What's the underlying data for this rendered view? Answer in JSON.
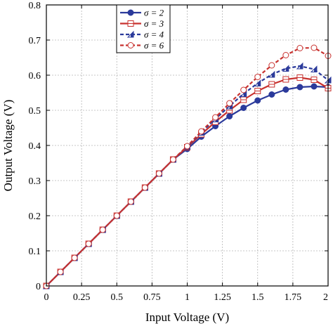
{
  "chart_data": {
    "type": "line",
    "title": "",
    "xlabel": "Input Voltage (V)",
    "ylabel": "Output Voltage (V)",
    "xlim": [
      0,
      2
    ],
    "ylim": [
      0,
      0.8
    ],
    "xticks": [
      0,
      0.25,
      0.5,
      0.75,
      1,
      1.25,
      1.5,
      1.75,
      2
    ],
    "xtick_labels": [
      "0",
      "0.25",
      "0.5",
      "0.75",
      "1",
      "1.25",
      "1.5",
      "1.75",
      "2"
    ],
    "yticks": [
      0,
      0.1,
      0.2,
      0.3,
      0.4,
      0.5,
      0.6,
      0.7,
      0.8
    ],
    "ytick_labels": [
      "0",
      "0.1",
      "0.2",
      "0.3",
      "0.4",
      "0.5",
      "0.6",
      "0.7",
      "0.8"
    ],
    "grid": true,
    "legend_position": "top-left",
    "x": [
      0,
      0.1,
      0.2,
      0.3,
      0.4,
      0.5,
      0.6,
      0.7,
      0.8,
      0.9,
      1.0,
      1.1,
      1.2,
      1.3,
      1.4,
      1.5,
      1.6,
      1.7,
      1.8,
      1.9,
      2.0
    ],
    "series": [
      {
        "name": "σ = 2",
        "color": "#2b3a9b",
        "dash": "solid",
        "marker": "filled-circle",
        "values": [
          0,
          0.04,
          0.08,
          0.12,
          0.16,
          0.2,
          0.24,
          0.28,
          0.32,
          0.36,
          0.39,
          0.425,
          0.455,
          0.483,
          0.507,
          0.528,
          0.545,
          0.559,
          0.566,
          0.568,
          0.566
        ]
      },
      {
        "name": "σ = 3",
        "color": "#c8322f",
        "dash": "solid",
        "marker": "open-square",
        "values": [
          0,
          0.04,
          0.08,
          0.12,
          0.16,
          0.2,
          0.24,
          0.28,
          0.32,
          0.36,
          0.395,
          0.432,
          0.467,
          0.5,
          0.53,
          0.555,
          0.574,
          0.588,
          0.593,
          0.587,
          0.563
        ]
      },
      {
        "name": "σ = 4",
        "color": "#2b3a9b",
        "dash": "dashed",
        "marker": "half-triangle",
        "values": [
          0,
          0.04,
          0.08,
          0.12,
          0.16,
          0.2,
          0.24,
          0.28,
          0.32,
          0.36,
          0.397,
          0.437,
          0.475,
          0.512,
          0.547,
          0.577,
          0.602,
          0.619,
          0.626,
          0.617,
          0.586
        ]
      },
      {
        "name": "σ = 6",
        "color": "#c8322f",
        "dash": "dashed",
        "marker": "open-circle",
        "values": [
          0,
          0.04,
          0.08,
          0.12,
          0.16,
          0.2,
          0.24,
          0.28,
          0.32,
          0.36,
          0.398,
          0.44,
          0.48,
          0.52,
          0.558,
          0.595,
          0.628,
          0.657,
          0.677,
          0.678,
          0.655
        ]
      }
    ]
  }
}
